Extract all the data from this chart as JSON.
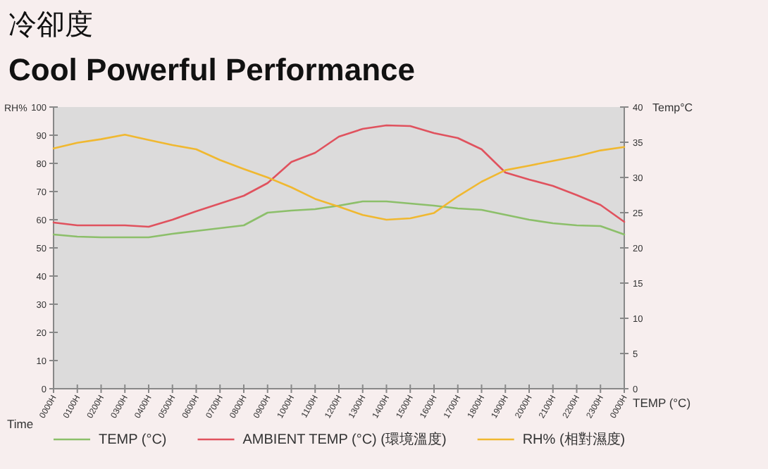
{
  "chart_data": {
    "type": "line",
    "title": "冷卻度",
    "subtitle": "Cool Powerful Performance",
    "xlabel": "Time",
    "ylabel": "RH%",
    "y2label": "Temp°C",
    "categories": [
      "0000H",
      "0100H",
      "0200H",
      "0300H",
      "0400H",
      "0500H",
      "0600H",
      "0700H",
      "0800H",
      "0900H",
      "1000H",
      "1100H",
      "1200H",
      "1300H",
      "1400H",
      "1500H",
      "1600H",
      "1700H",
      "1800H",
      "1900H",
      "2000H",
      "2100H",
      "2200H",
      "2300H",
      "0000H"
    ],
    "series": [
      {
        "name": "TEMP (°C)",
        "color": "#8cbf6a",
        "axis": "y2",
        "values": [
          21.9,
          21.6,
          21.5,
          21.5,
          21.5,
          22.0,
          22.4,
          22.8,
          23.2,
          25.0,
          25.3,
          25.5,
          26.0,
          26.6,
          26.6,
          26.3,
          26.0,
          25.6,
          25.4,
          24.7,
          24.0,
          23.5,
          23.2,
          23.1,
          21.9
        ]
      },
      {
        "name": "AMBIENT TEMP (°C) (環境溫度)",
        "color": "#e0525e",
        "axis": "y2",
        "values": [
          23.6,
          23.2,
          23.2,
          23.2,
          23.0,
          24.0,
          25.2,
          26.3,
          27.4,
          29.2,
          32.2,
          33.5,
          35.8,
          36.9,
          37.4,
          37.3,
          36.3,
          35.6,
          34.0,
          30.7,
          29.7,
          28.8,
          27.5,
          26.1,
          23.7
        ]
      },
      {
        "name": "RH% (相對濕度)",
        "color": "#f0b830",
        "values": [
          85.3,
          87.3,
          88.6,
          90.2,
          88.3,
          86.5,
          85.0,
          81.2,
          78.0,
          75.0,
          71.5,
          67.4,
          64.6,
          61.7,
          60.0,
          60.5,
          62.4,
          68.3,
          73.5,
          77.6,
          79.2,
          80.9,
          82.5,
          84.6,
          85.8
        ]
      }
    ],
    "ylim": [
      0,
      100
    ],
    "yticks": [
      0,
      10,
      20,
      30,
      40,
      50,
      60,
      70,
      80,
      90,
      100
    ],
    "y2lim": [
      0,
      40
    ],
    "y2ticks": [
      0,
      5,
      10,
      15,
      20,
      25,
      30,
      35,
      40
    ],
    "annotations": [
      "TEMP (°C)"
    ],
    "legend": "bottom",
    "grid": false,
    "marker": "none",
    "line_style": "solid"
  }
}
